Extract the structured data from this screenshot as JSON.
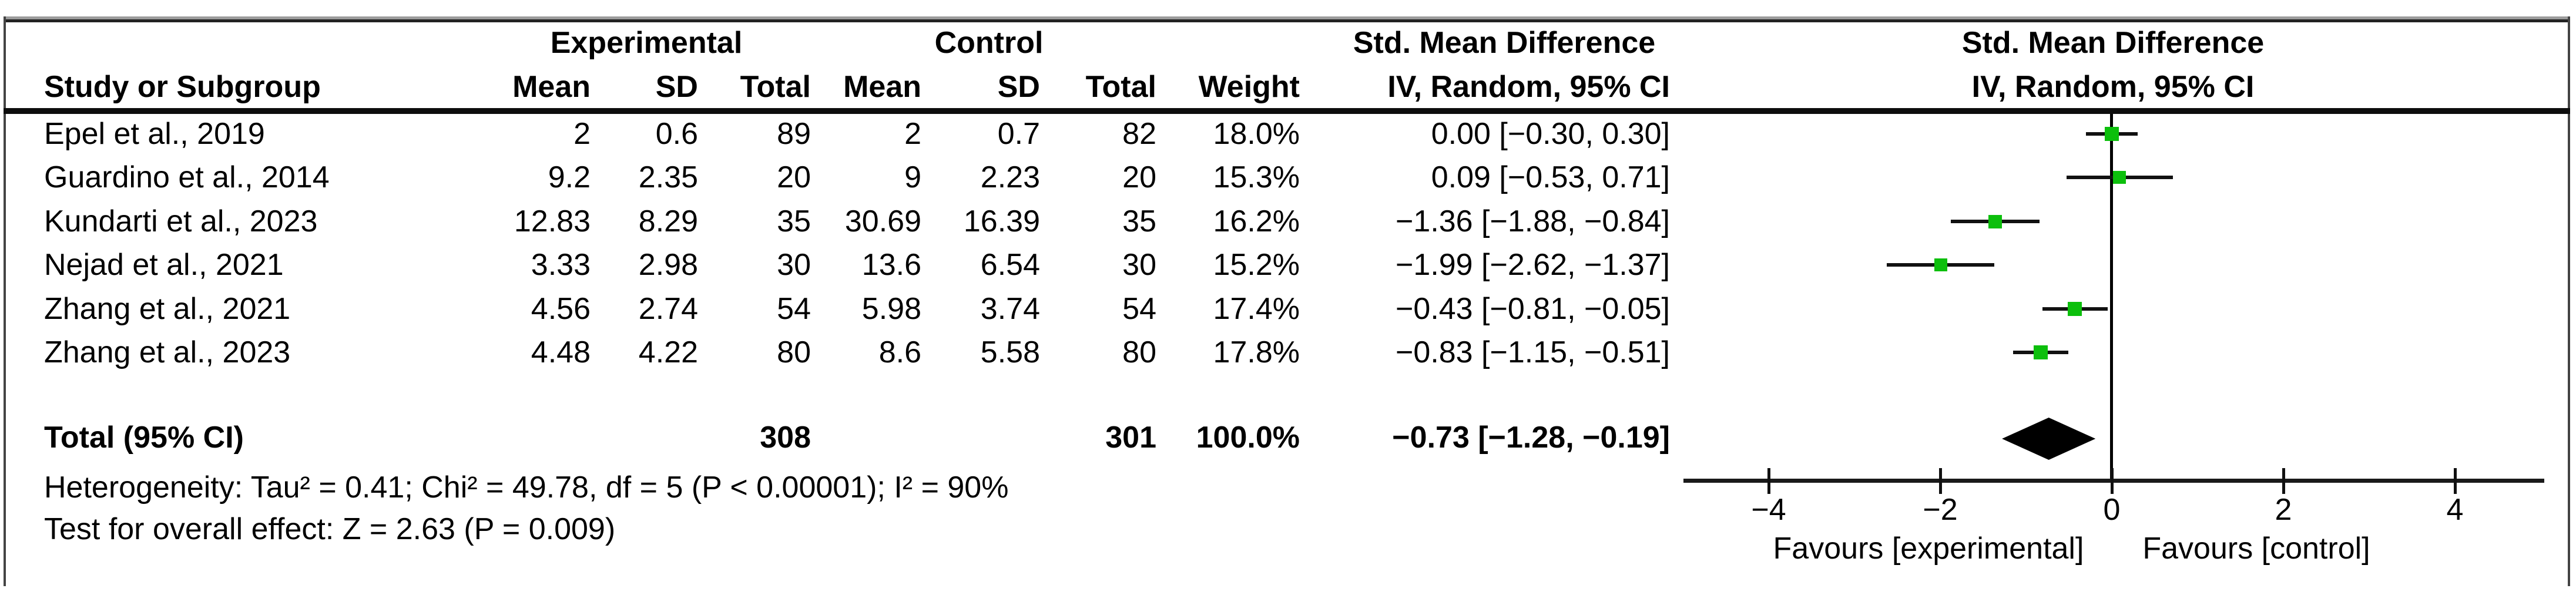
{
  "chart_data": {
    "type": "forest",
    "effect_measure": "Std. Mean Difference",
    "method_label": "IV, Random, 95% CI",
    "group_headers": {
      "experimental": "Experimental",
      "control": "Control"
    },
    "column_headers": {
      "study": "Study or Subgroup",
      "mean": "Mean",
      "sd": "SD",
      "total": "Total",
      "weight": "Weight",
      "ci": "IV, Random, 95% CI"
    },
    "studies": [
      {
        "name": "Epel et al., 2019",
        "exp_mean": "2",
        "exp_sd": "0.6",
        "exp_total": "89",
        "ctl_mean": "2",
        "ctl_sd": "0.7",
        "ctl_total": "82",
        "weight": "18.0%",
        "ci_text": "0.00 [−0.30, 0.30]",
        "smd": 0.0,
        "ci_low": -0.3,
        "ci_high": 0.3,
        "weight_pct": 18.0
      },
      {
        "name": "Guardino et al., 2014",
        "exp_mean": "9.2",
        "exp_sd": "2.35",
        "exp_total": "20",
        "ctl_mean": "9",
        "ctl_sd": "2.23",
        "ctl_total": "20",
        "weight": "15.3%",
        "ci_text": "0.09 [−0.53, 0.71]",
        "smd": 0.09,
        "ci_low": -0.53,
        "ci_high": 0.71,
        "weight_pct": 15.3
      },
      {
        "name": "Kundarti et al., 2023",
        "exp_mean": "12.83",
        "exp_sd": "8.29",
        "exp_total": "35",
        "ctl_mean": "30.69",
        "ctl_sd": "16.39",
        "ctl_total": "35",
        "weight": "16.2%",
        "ci_text": "−1.36 [−1.88, −0.84]",
        "smd": -1.36,
        "ci_low": -1.88,
        "ci_high": -0.84,
        "weight_pct": 16.2
      },
      {
        "name": "Nejad et al., 2021",
        "exp_mean": "3.33",
        "exp_sd": "2.98",
        "exp_total": "30",
        "ctl_mean": "13.6",
        "ctl_sd": "6.54",
        "ctl_total": "30",
        "weight": "15.2%",
        "ci_text": "−1.99 [−2.62, −1.37]",
        "smd": -1.99,
        "ci_low": -2.62,
        "ci_high": -1.37,
        "weight_pct": 15.2
      },
      {
        "name": "Zhang et al., 2021",
        "exp_mean": "4.56",
        "exp_sd": "2.74",
        "exp_total": "54",
        "ctl_mean": "5.98",
        "ctl_sd": "3.74",
        "ctl_total": "54",
        "weight": "17.4%",
        "ci_text": "−0.43 [−0.81, −0.05]",
        "smd": -0.43,
        "ci_low": -0.81,
        "ci_high": -0.05,
        "weight_pct": 17.4
      },
      {
        "name": "Zhang et al., 2023",
        "exp_mean": "4.48",
        "exp_sd": "4.22",
        "exp_total": "80",
        "ctl_mean": "8.6",
        "ctl_sd": "5.58",
        "ctl_total": "80",
        "weight": "17.8%",
        "ci_text": "−0.83 [−1.15, −0.51]",
        "smd": -0.83,
        "ci_low": -1.15,
        "ci_high": -0.51,
        "weight_pct": 17.8
      }
    ],
    "total": {
      "label": "Total (95% CI)",
      "exp_total": "308",
      "ctl_total": "301",
      "weight": "100.0%",
      "ci_text": "−0.73 [−1.28, −0.19]",
      "smd": -0.73,
      "ci_low": -1.28,
      "ci_high": -0.19
    },
    "heterogeneity": "Heterogeneity: Tau² = 0.41; Chi² = 49.78, df = 5 (P < 0.00001); I² = 90%",
    "overall_effect": "Test for overall effect: Z = 2.63 (P = 0.009)",
    "axis": {
      "tick_values": [
        -4,
        -2,
        0,
        2,
        4
      ],
      "tick_labels": [
        "−4",
        "−2",
        "0",
        "2",
        "4"
      ],
      "xlim": [
        -5,
        5
      ],
      "grid": false,
      "favours_left": "Favours [experimental]",
      "favours_right": "Favours [control]"
    },
    "style": {
      "marker_color": "#0CBF0C",
      "line_color": "#111111",
      "diamond_color": "#000000"
    }
  }
}
